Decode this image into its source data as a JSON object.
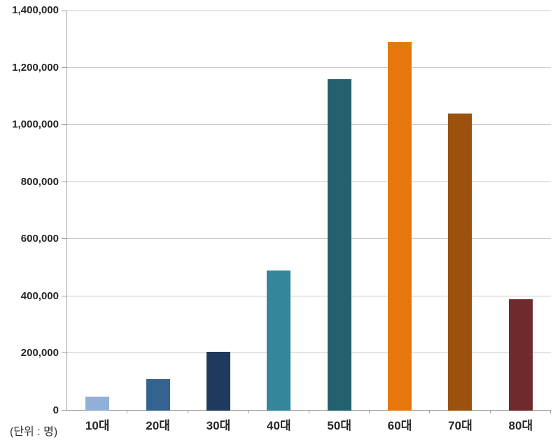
{
  "chart_data": {
    "type": "bar",
    "title": "",
    "xlabel": "",
    "ylabel": "",
    "unit_note": "(단위 : 명)",
    "categories": [
      "10대",
      "20대",
      "30대",
      "40대",
      "50대",
      "60대",
      "70대",
      "80대"
    ],
    "values": [
      48000,
      110000,
      205000,
      490000,
      1160000,
      1290000,
      1040000,
      390000
    ],
    "bar_colors": [
      "#92AFD7",
      "#35638F",
      "#1F3A5C",
      "#35869B",
      "#24606E",
      "#E7770D",
      "#9C520F",
      "#6E2A2F"
    ],
    "ylim": [
      0,
      1400000
    ],
    "y_ticks": [
      0,
      200000,
      400000,
      600000,
      800000,
      1000000,
      1200000,
      1400000
    ],
    "y_tick_labels": [
      "0",
      "200,000",
      "400,000",
      "600,000",
      "800,000",
      "1,000,000",
      "1,200,000",
      "1,400,000"
    ],
    "grid": "horizontal",
    "legend": "none",
    "colors": {
      "gridline": "#C9C9C9",
      "axis": "#9E9E9E",
      "tick_label": "#262626",
      "background": "#FFFFFF"
    }
  }
}
